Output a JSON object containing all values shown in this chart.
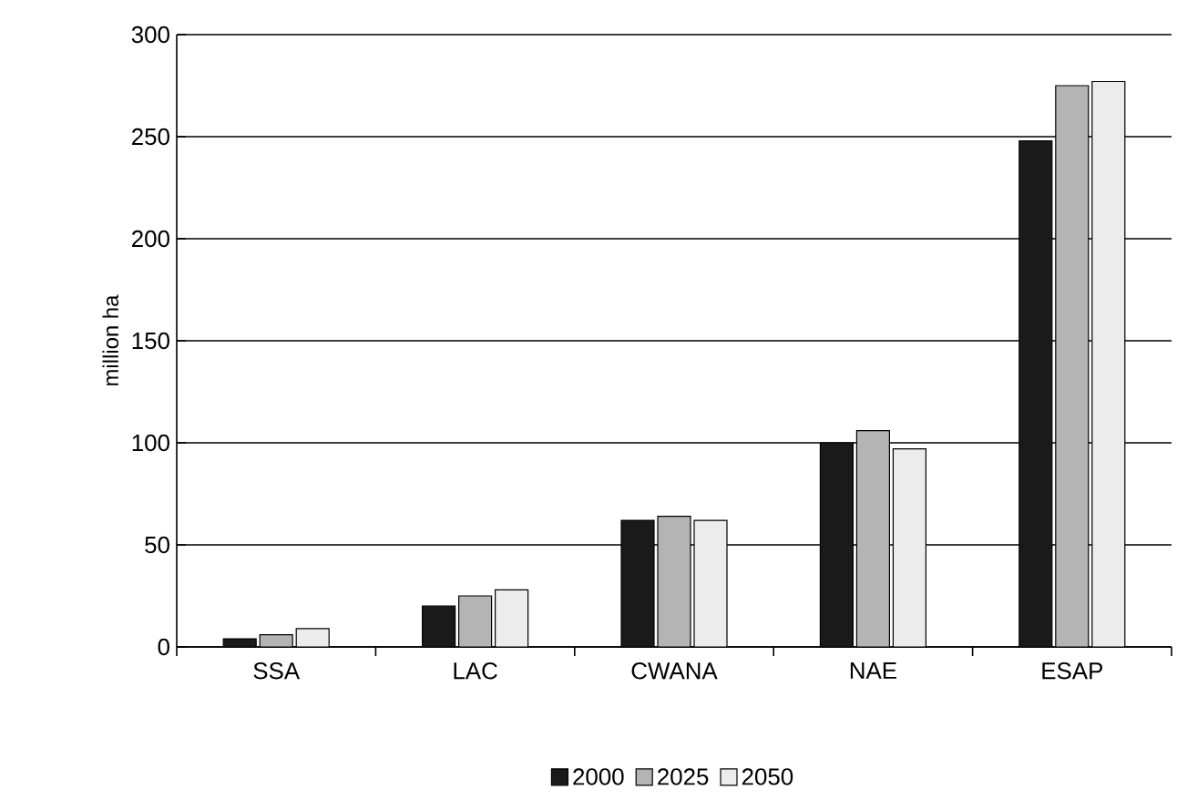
{
  "chart_data": {
    "type": "bar",
    "ylabel": "million ha",
    "categories": [
      "SSA",
      "LAC",
      "CWANA",
      "NAE",
      "ESAP"
    ],
    "series": [
      {
        "name": "2000",
        "color": "#1a1a1a",
        "values": [
          4,
          20,
          62,
          100,
          248
        ]
      },
      {
        "name": "2025",
        "color": "#b4b4b4",
        "values": [
          6,
          25,
          64,
          106,
          275
        ]
      },
      {
        "name": "2050",
        "color": "#ececec",
        "values": [
          9,
          28,
          62,
          97,
          277
        ]
      }
    ],
    "ylim": [
      0,
      300
    ],
    "yticks": [
      0,
      50,
      100,
      150,
      200,
      250,
      300
    ],
    "grid": "y",
    "legend": "bottom"
  }
}
